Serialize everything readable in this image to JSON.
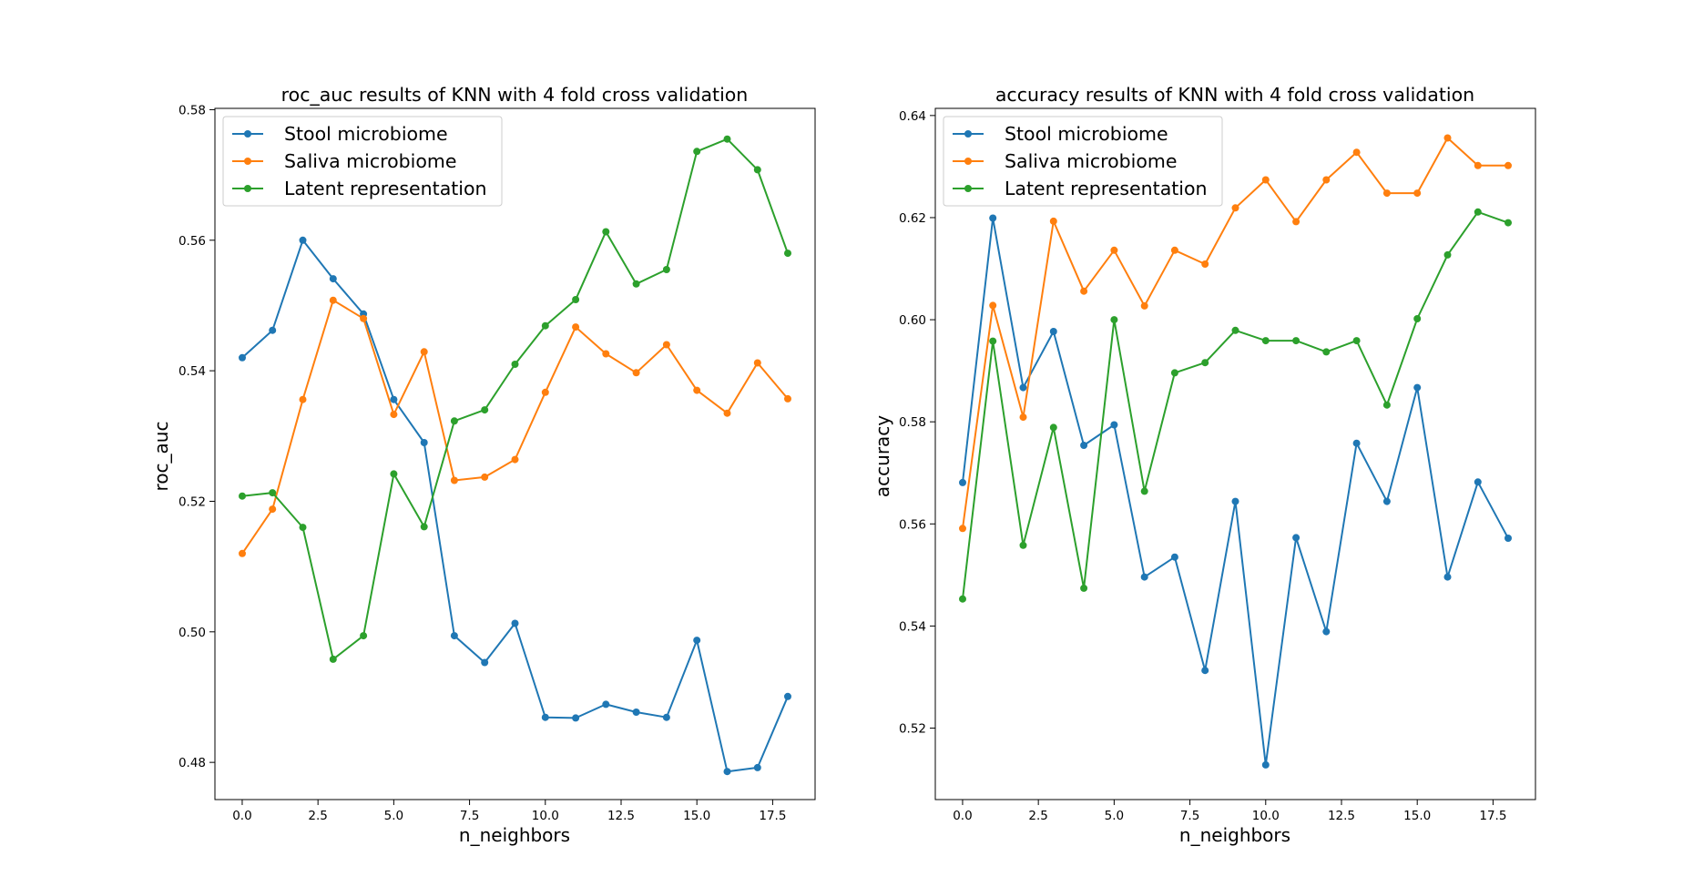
{
  "chart_data": [
    {
      "type": "line",
      "title": "roc_auc results of KNN with 4 fold cross validation",
      "xlabel": "n_neighbors",
      "ylabel": "roc_auc",
      "x": [
        0,
        1,
        2,
        3,
        4,
        5,
        6,
        7,
        8,
        9,
        10,
        11,
        12,
        13,
        14,
        15,
        16,
        17,
        18
      ],
      "xlim": [
        -0.9,
        18.9
      ],
      "ylim": [
        0.4743,
        0.5802
      ],
      "xticks": [
        0.0,
        2.5,
        5.0,
        7.5,
        10.0,
        12.5,
        15.0,
        17.5
      ],
      "xtick_labels": [
        "0.0",
        "2.5",
        "5.0",
        "7.5",
        "10.0",
        "12.5",
        "15.0",
        "17.5"
      ],
      "yticks": [
        0.48,
        0.5,
        0.52,
        0.54,
        0.56,
        0.58
      ],
      "ytick_labels": [
        "0.48",
        "0.50",
        "0.52",
        "0.54",
        "0.56",
        "0.58"
      ],
      "legend_position": "upper-left",
      "grid": false,
      "series": [
        {
          "name": "Stool microbiome",
          "color": "#1f77b4",
          "values": [
            0.542,
            0.5462,
            0.56,
            0.5541,
            0.5487,
            0.5356,
            0.529,
            0.4994,
            0.4953,
            0.5013,
            0.4869,
            0.4868,
            0.4889,
            0.4877,
            0.4869,
            0.4987,
            0.4786,
            0.4792,
            0.4901
          ]
        },
        {
          "name": "Saliva microbiome",
          "color": "#ff7f0e",
          "values": [
            0.512,
            0.5188,
            0.5356,
            0.5508,
            0.548,
            0.5333,
            0.5429,
            0.5232,
            0.5237,
            0.5264,
            0.5367,
            0.5467,
            0.5426,
            0.5397,
            0.544,
            0.537,
            0.5335,
            0.5412,
            0.5357
          ]
        },
        {
          "name": "Latent representation",
          "color": "#2ca02c",
          "values": [
            0.5208,
            0.5213,
            0.516,
            0.4958,
            0.4994,
            0.5242,
            0.5161,
            0.5323,
            0.534,
            0.541,
            0.5469,
            0.5509,
            0.5613,
            0.5533,
            0.5555,
            0.5736,
            0.5755,
            0.5708,
            0.558
          ]
        }
      ]
    },
    {
      "type": "line",
      "title": "accuracy results of KNN with 4 fold cross validation",
      "xlabel": "n_neighbors",
      "ylabel": "accuracy",
      "x": [
        0,
        1,
        2,
        3,
        4,
        5,
        6,
        7,
        8,
        9,
        10,
        11,
        12,
        13,
        14,
        15,
        16,
        17,
        18
      ],
      "xlim": [
        -0.9,
        18.9
      ],
      "ylim": [
        0.506,
        0.6414
      ],
      "xticks": [
        0.0,
        2.5,
        5.0,
        7.5,
        10.0,
        12.5,
        15.0,
        17.5
      ],
      "xtick_labels": [
        "0.0",
        "2.5",
        "5.0",
        "7.5",
        "10.0",
        "12.5",
        "15.0",
        "17.5"
      ],
      "yticks": [
        0.52,
        0.54,
        0.56,
        0.58,
        0.6,
        0.62,
        0.64
      ],
      "ytick_labels": [
        "0.52",
        "0.54",
        "0.56",
        "0.58",
        "0.60",
        "0.62",
        "0.64"
      ],
      "legend_position": "upper-left",
      "grid": false,
      "series": [
        {
          "name": "Stool microbiome",
          "color": "#1f77b4",
          "values": [
            0.5681,
            0.6199,
            0.5867,
            0.5977,
            0.5754,
            0.5794,
            0.5496,
            0.5535,
            0.5313,
            0.5644,
            0.5128,
            0.5573,
            0.5389,
            0.5758,
            0.5644,
            0.5867,
            0.5496,
            0.5682,
            0.5572
          ]
        },
        {
          "name": "Saliva microbiome",
          "color": "#ff7f0e",
          "values": [
            0.5591,
            0.6028,
            0.5809,
            0.6193,
            0.6056,
            0.6136,
            0.6027,
            0.6136,
            0.6109,
            0.6219,
            0.6274,
            0.6192,
            0.6274,
            0.6328,
            0.6248,
            0.6248,
            0.6356,
            0.6302,
            0.6302
          ]
        },
        {
          "name": "Latent representation",
          "color": "#2ca02c",
          "values": [
            0.5453,
            0.5958,
            0.5558,
            0.5789,
            0.5474,
            0.6,
            0.5664,
            0.5896,
            0.5916,
            0.5979,
            0.5959,
            0.5959,
            0.5937,
            0.5959,
            0.5833,
            0.6002,
            0.6127,
            0.6211,
            0.619
          ]
        }
      ]
    }
  ]
}
